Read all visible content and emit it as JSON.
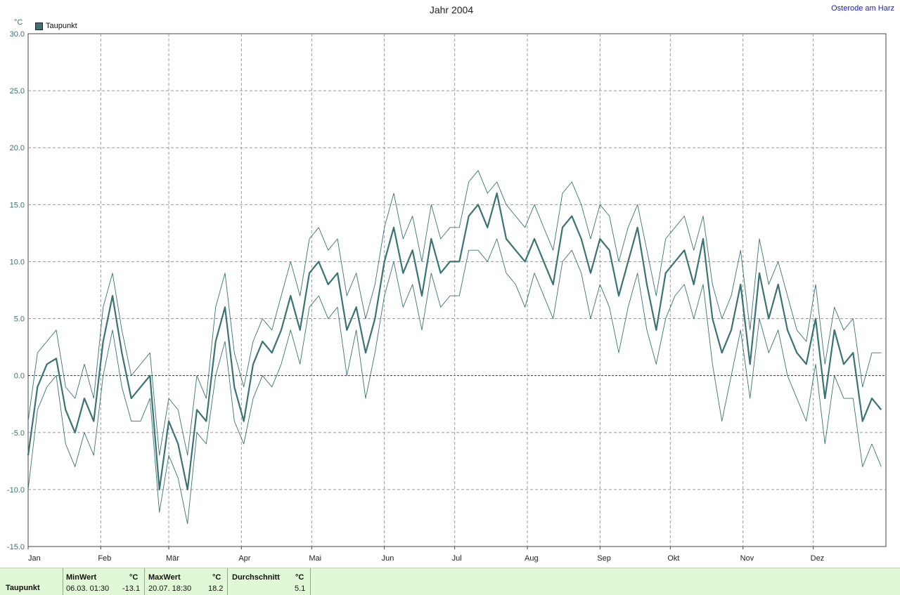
{
  "title": "Jahr 2004",
  "location": "Osterode am Harz",
  "unit": "°C",
  "legend": {
    "label": "Taupunkt",
    "color": "#3a7373"
  },
  "summary": {
    "row_label": "Taupunkt",
    "min": {
      "header": "MinWert",
      "unit": "°C",
      "datetime": "06.03.  01:30",
      "value": "-13.1"
    },
    "max": {
      "header": "MaxWert",
      "unit": "°C",
      "datetime": "20.07.  18:30",
      "value": "18.2"
    },
    "avg": {
      "header": "Durchschnitt",
      "unit": "°C",
      "value": "5.1"
    }
  },
  "chart_data": {
    "type": "line",
    "title": "Jahr 2004",
    "ylabel": "°C",
    "ylim": [
      -15,
      30
    ],
    "yticks": [
      "-15.0",
      "-10.0",
      "-5.0",
      "0.0",
      "5.0",
      "10.0",
      "15.0",
      "20.0",
      "25.0",
      "30.0"
    ],
    "xlim": [
      0,
      366
    ],
    "months": [
      "Jan",
      "Feb",
      "Mär",
      "Apr",
      "Mai",
      "Jun",
      "Jul",
      "Aug",
      "Sep",
      "Okt",
      "Nov",
      "Dez"
    ],
    "grid": true,
    "legend_position": "top-left",
    "series": [
      {
        "name": "Taupunkt",
        "x": [
          0,
          4,
          8,
          12,
          16,
          20,
          24,
          28,
          32,
          36,
          40,
          44,
          48,
          52,
          56,
          60,
          64,
          68,
          72,
          76,
          80,
          84,
          88,
          92,
          96,
          100,
          104,
          108,
          112,
          116,
          120,
          124,
          128,
          132,
          136,
          140,
          144,
          148,
          152,
          156,
          160,
          164,
          168,
          172,
          176,
          180,
          184,
          188,
          192,
          196,
          200,
          204,
          208,
          212,
          216,
          220,
          224,
          228,
          232,
          236,
          240,
          244,
          248,
          252,
          256,
          260,
          264,
          268,
          272,
          276,
          280,
          284,
          288,
          292,
          296,
          300,
          304,
          308,
          312,
          316,
          320,
          324,
          328,
          332,
          336,
          340,
          344,
          348,
          352,
          356,
          360,
          364
        ],
        "mean": [
          -7,
          -1,
          1,
          1.5,
          -3,
          -5,
          -2,
          -4,
          3,
          7,
          2,
          -2,
          -1,
          0,
          -10,
          -4,
          -6,
          -10,
          -3,
          -4,
          3,
          6,
          -1,
          -4,
          1,
          3,
          2,
          4,
          7,
          4,
          9,
          10,
          8,
          9,
          4,
          6,
          2,
          5,
          10,
          13,
          9,
          11,
          7,
          12,
          9,
          10,
          10,
          14,
          15,
          13,
          16,
          12,
          11,
          10,
          12,
          10,
          8,
          13,
          14,
          12,
          9,
          12,
          11,
          7,
          10,
          13,
          8,
          4,
          9,
          10,
          11,
          8,
          12,
          5,
          2,
          4,
          8,
          1,
          9,
          5,
          8,
          4,
          2,
          1,
          5,
          -2,
          4,
          1,
          2,
          -4,
          -2,
          -3
        ],
        "min": [
          -10,
          -3,
          -1,
          0,
          -6,
          -8,
          -5,
          -7,
          0,
          4,
          -1,
          -4,
          -4,
          -2,
          -12,
          -7,
          -9,
          -13,
          -5,
          -6,
          0,
          3,
          -4,
          -6,
          -2,
          0,
          -1,
          1,
          4,
          1,
          6,
          7,
          5,
          6,
          0,
          4,
          -2,
          2,
          7,
          10,
          6,
          8,
          4,
          9,
          6,
          7,
          7,
          11,
          11,
          10,
          12,
          9,
          8,
          6,
          9,
          7,
          5,
          10,
          11,
          9,
          5,
          8,
          6,
          2,
          6,
          9,
          4,
          1,
          5,
          7,
          8,
          5,
          8,
          1,
          -4,
          0,
          4,
          -2,
          5,
          2,
          4,
          0,
          -2,
          -4,
          1,
          -6,
          0,
          -2,
          -2,
          -8,
          -6,
          -8
        ],
        "max": [
          -4,
          2,
          3,
          4,
          -1,
          -2,
          1,
          -2,
          6,
          9,
          4,
          0,
          1,
          2,
          -7,
          -2,
          -3,
          -7,
          0,
          -2,
          6,
          9,
          2,
          -1,
          3,
          5,
          4,
          7,
          10,
          7,
          12,
          13,
          11,
          12,
          7,
          9,
          5,
          8,
          13,
          16,
          12,
          14,
          10,
          15,
          12,
          13,
          13,
          17,
          18,
          16,
          17,
          15,
          14,
          13,
          15,
          13,
          11,
          16,
          17,
          15,
          12,
          15,
          14,
          10,
          13,
          15,
          11,
          7,
          12,
          13,
          14,
          11,
          14,
          8,
          5,
          7,
          11,
          4,
          12,
          8,
          10,
          7,
          4,
          3,
          8,
          1,
          6,
          4,
          5,
          -1,
          2,
          2
        ]
      }
    ]
  }
}
